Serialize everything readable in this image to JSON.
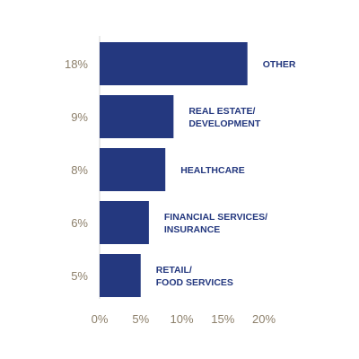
{
  "chart_data": {
    "type": "bar",
    "orientation": "horizontal",
    "categories": [
      [
        "OTHER"
      ],
      [
        "REAL ESTATE/",
        "DEVELOPMENT"
      ],
      [
        "HEALTHCARE"
      ],
      [
        "FINANCIAL SERVICES/",
        "INSURANCE"
      ],
      [
        "RETAIL/",
        "FOOD SERVICES"
      ]
    ],
    "values": [
      18,
      9,
      8,
      6,
      5
    ],
    "value_labels": [
      "18%",
      "9%",
      "8%",
      "6%",
      "5%"
    ],
    "x_ticks": [
      0,
      5,
      10,
      15,
      20
    ],
    "x_tick_labels": [
      "0%",
      "5%",
      "10%",
      "15%",
      "20%"
    ],
    "xlim": [
      0,
      20
    ],
    "grid": false,
    "colors": {
      "bar": "#24387f",
      "category_text": "#24387f",
      "value_text": "#8c7f6a",
      "tick_text": "#8c7f6a",
      "axis": "#d6d6d6"
    }
  }
}
